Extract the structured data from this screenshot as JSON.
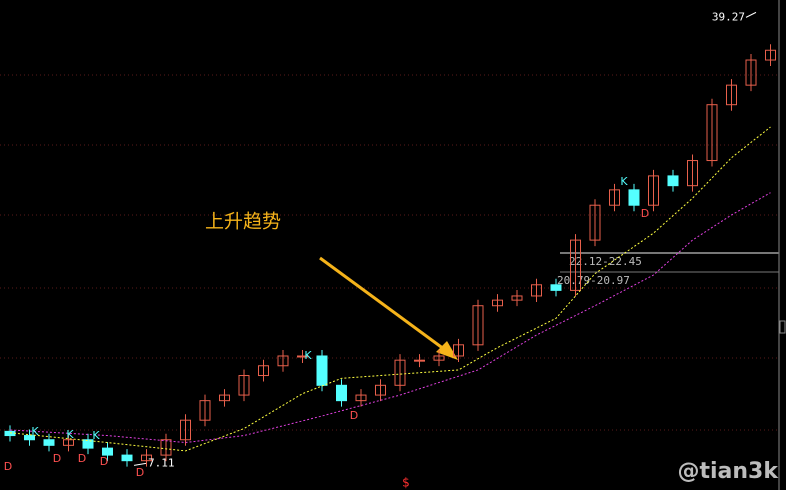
{
  "chart_data": {
    "type": "candlestick",
    "ylim": [
      5.2,
      40.3
    ],
    "open": [
      9.4,
      9.1,
      8.8,
      8.4,
      8.8,
      8.2,
      7.7,
      7.3,
      7.7,
      8.8,
      10.2,
      11.6,
      12.0,
      13.4,
      14.1,
      14.8,
      14.8,
      12.7,
      11.6,
      12.0,
      12.7,
      14.5,
      14.5,
      14.8,
      15.6,
      18.4,
      18.8,
      19.1,
      19.9,
      19.5,
      23.1,
      25.6,
      26.7,
      25.6,
      27.7,
      27.0,
      28.8,
      32.8,
      34.2,
      36.0
    ],
    "close": [
      9.1,
      8.8,
      8.4,
      8.8,
      8.2,
      7.7,
      7.3,
      7.7,
      8.8,
      10.2,
      11.6,
      12.0,
      13.4,
      14.1,
      14.8,
      14.8,
      12.7,
      11.6,
      12.0,
      12.7,
      14.5,
      14.5,
      14.8,
      15.6,
      18.4,
      18.8,
      19.1,
      19.9,
      19.5,
      23.1,
      25.6,
      26.7,
      25.6,
      27.7,
      27.0,
      28.8,
      32.8,
      34.2,
      36.0,
      36.7
    ],
    "up_color": "#e8604c",
    "down_color": "#54ffff",
    "series": [
      {
        "color": "#ffff40",
        "x": [
          0,
          5,
          9,
          12,
          15,
          17,
          20,
          23,
          25,
          28,
          30,
          33,
          35,
          37,
          39
        ],
        "values": [
          9.3,
          8.6,
          8.0,
          9.6,
          12.1,
          13.2,
          13.5,
          13.8,
          15.4,
          17.5,
          20.7,
          23.6,
          26.1,
          29.0,
          31.2
        ]
      },
      {
        "color": "#e040e0",
        "x": [
          0,
          5,
          9,
          12,
          16,
          20,
          24,
          27,
          30,
          33,
          35,
          37,
          39
        ],
        "values": [
          9.5,
          9.1,
          8.6,
          9.1,
          10.5,
          12.0,
          13.8,
          16.3,
          18.4,
          20.6,
          23.1,
          24.9,
          26.5
        ]
      }
    ],
    "high": 39.27,
    "low": 7.11,
    "levels": [
      "22.12-22.45",
      "20.79-20.97"
    ],
    "markers": [
      "D",
      "K",
      "D",
      "K",
      "D",
      "K",
      "D",
      "D",
      "K",
      "D",
      "K",
      "D"
    ],
    "annotation": "上升趋势",
    "signal": "$",
    "watermark": "@tian3k"
  }
}
